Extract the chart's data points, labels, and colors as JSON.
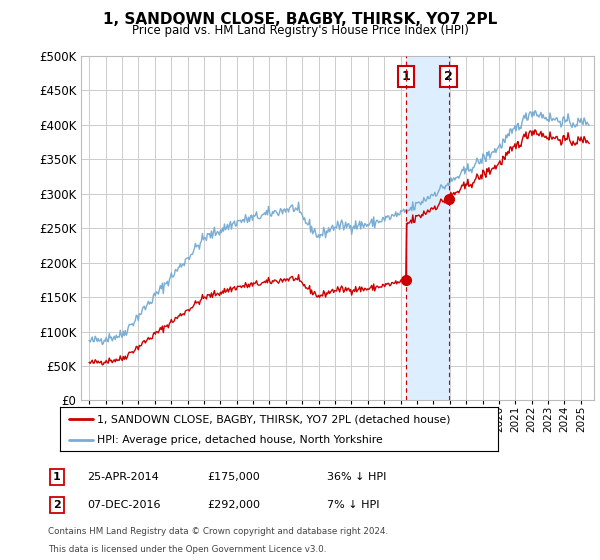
{
  "title": "1, SANDOWN CLOSE, BAGBY, THIRSK, YO7 2PL",
  "subtitle": "Price paid vs. HM Land Registry's House Price Index (HPI)",
  "legend_line1": "1, SANDOWN CLOSE, BAGBY, THIRSK, YO7 2PL (detached house)",
  "legend_line2": "HPI: Average price, detached house, North Yorkshire",
  "sale1_date": "25-APR-2014",
  "sale1_price": "£175,000",
  "sale1_pct": "36% ↓ HPI",
  "sale1_year": 2014.32,
  "sale1_value": 175000,
  "sale2_date": "07-DEC-2016",
  "sale2_price": "£292,000",
  "sale2_pct": "7% ↓ HPI",
  "sale2_year": 2016.93,
  "sale2_value": 292000,
  "ylim": [
    0,
    500000
  ],
  "yticks": [
    0,
    50000,
    100000,
    150000,
    200000,
    250000,
    300000,
    350000,
    400000,
    450000,
    500000
  ],
  "footnote1": "Contains HM Land Registry data © Crown copyright and database right 2024.",
  "footnote2": "This data is licensed under the Open Government Licence v3.0.",
  "line_color_red": "#cc0000",
  "line_color_blue": "#7aadd4",
  "shade_color": "#ddeeff",
  "marker_box_color": "#cc0000",
  "background_color": "#ffffff",
  "grid_color": "#cccccc"
}
